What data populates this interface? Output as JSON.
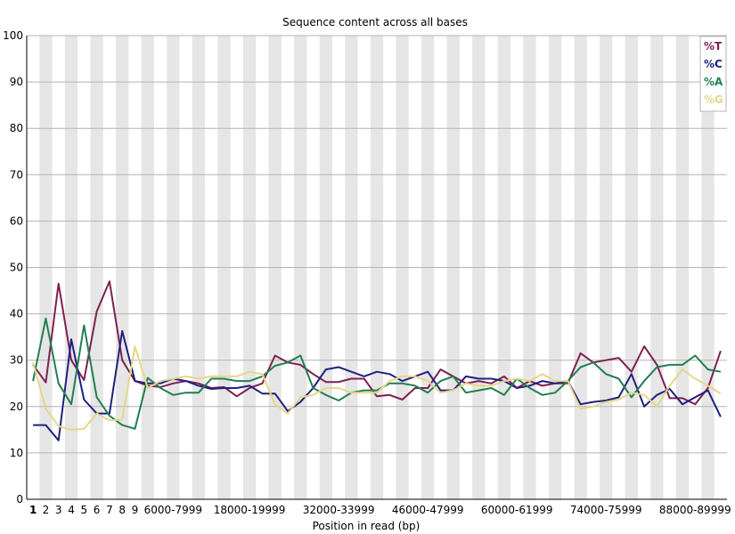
{
  "chart_data": {
    "type": "line",
    "title": "Sequence content across all bases",
    "xlabel": "Position in read (bp)",
    "ylabel": "",
    "ylim": [
      0,
      100
    ],
    "yticks": [
      0,
      10,
      20,
      30,
      40,
      50,
      60,
      70,
      80,
      90,
      100
    ],
    "grid": true,
    "legend_position": "top-right",
    "x_tick_labels": [
      "1",
      "2",
      "3",
      "4",
      "5",
      "6",
      "7",
      "8",
      "9",
      "6000-7999",
      "18000-19999",
      "32000-33999",
      "46000-47999",
      "60000-61999",
      "74000-75999",
      "88000-89999"
    ],
    "x_tick_indices": [
      0,
      1,
      2,
      3,
      4,
      5,
      6,
      7,
      8,
      11,
      17,
      24,
      31,
      38,
      45,
      52
    ],
    "num_positions": 55,
    "series": [
      {
        "name": "%T",
        "color": "#7f2050",
        "values": [
          29.0,
          25.2,
          46.5,
          30.0,
          25.7,
          40.5,
          47.0,
          30.0,
          25.5,
          24.5,
          24.2,
          25.0,
          25.5,
          25.0,
          24.0,
          24.2,
          22.2,
          24.0,
          25.0,
          31.0,
          29.5,
          29.0,
          27.0,
          25.3,
          25.3,
          26.0,
          26.0,
          22.2,
          22.5,
          21.5,
          24.0,
          24.0,
          28.0,
          26.5,
          25.0,
          25.5,
          25.0,
          26.5,
          24.0,
          25.5,
          24.5,
          25.0,
          25.0,
          31.5,
          29.5,
          30.0,
          30.5,
          27.5,
          33.0,
          29.0,
          21.8,
          21.8,
          20.5,
          24.0,
          32.0
        ]
      },
      {
        "name": "%C",
        "color": "#20207f",
        "values": [
          16.0,
          16.0,
          12.7,
          34.5,
          21.5,
          18.5,
          18.5,
          36.3,
          25.5,
          25.0,
          25.0,
          26.0,
          25.5,
          24.5,
          23.8,
          24.0,
          24.0,
          24.5,
          22.8,
          22.8,
          19.0,
          21.0,
          24.0,
          28.0,
          28.5,
          27.5,
          26.5,
          27.5,
          27.0,
          25.5,
          26.5,
          27.5,
          23.5,
          23.5,
          26.5,
          26.0,
          26.0,
          25.5,
          24.0,
          24.5,
          25.5,
          25.0,
          25.5,
          20.5,
          21.0,
          21.3,
          22.0,
          27.0,
          20.0,
          22.5,
          23.8,
          20.5,
          22.0,
          23.5,
          17.8
        ]
      },
      {
        "name": "%A",
        "color": "#207f50",
        "values": [
          25.5,
          39.0,
          25.0,
          20.5,
          37.5,
          22.0,
          18.0,
          16.0,
          15.2,
          26.2,
          24.0,
          22.5,
          23.0,
          23.0,
          26.0,
          26.0,
          25.5,
          25.5,
          26.5,
          28.8,
          29.5,
          31.0,
          24.0,
          22.5,
          21.3,
          23.0,
          23.5,
          23.5,
          25.0,
          25.0,
          24.5,
          23.0,
          25.5,
          26.5,
          23.0,
          23.5,
          24.0,
          22.5,
          26.0,
          24.0,
          22.5,
          23.0,
          25.5,
          28.5,
          29.5,
          27.0,
          26.0,
          22.0,
          25.5,
          28.5,
          29.0,
          29.0,
          31.0,
          28.0,
          27.5
        ]
      },
      {
        "name": "%G",
        "color": "#e6d78a",
        "values": [
          29.5,
          19.5,
          15.8,
          15.0,
          15.2,
          18.5,
          17.0,
          17.2,
          33.0,
          24.0,
          25.5,
          26.0,
          26.5,
          26.0,
          26.5,
          26.5,
          26.5,
          27.5,
          27.0,
          20.5,
          18.5,
          22.0,
          22.5,
          24.0,
          24.0,
          23.0,
          23.0,
          23.0,
          25.5,
          26.5,
          26.5,
          25.5,
          23.0,
          23.5,
          25.0,
          24.5,
          24.5,
          25.5,
          26.0,
          25.5,
          27.0,
          25.5,
          25.5,
          19.5,
          20.0,
          21.0,
          21.5,
          23.0,
          22.5,
          20.0,
          24.5,
          28.0,
          26.0,
          24.5,
          22.8
        ]
      }
    ]
  }
}
